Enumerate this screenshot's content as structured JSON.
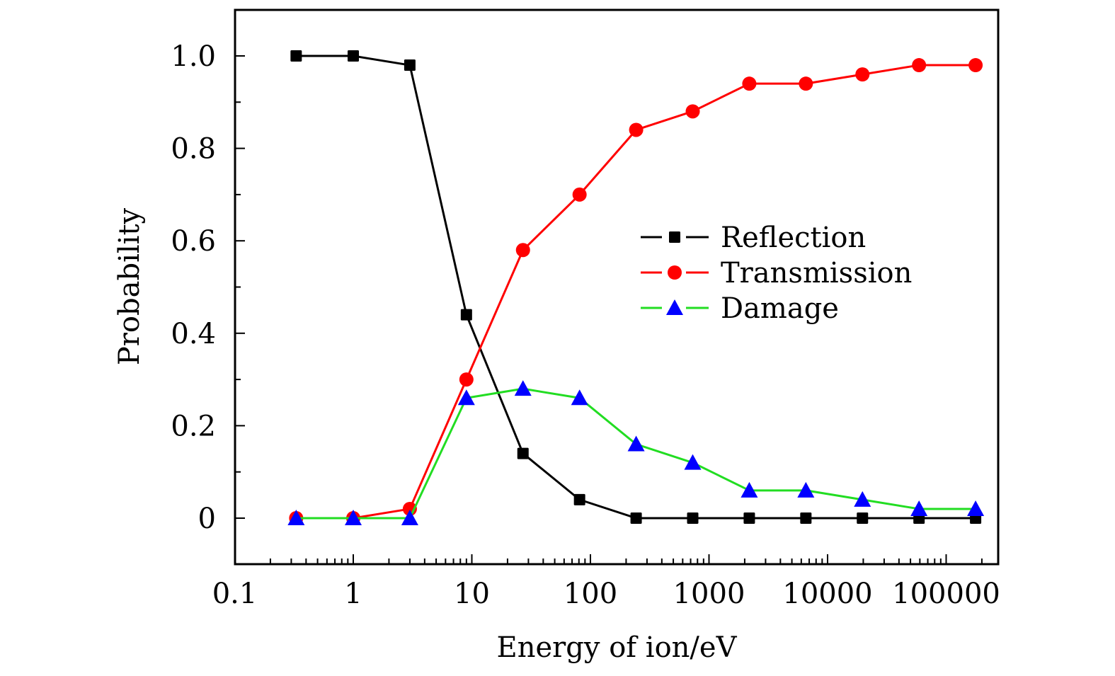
{
  "chart_data": {
    "type": "line",
    "title": "",
    "xlabel": "Energy of ion/eV",
    "ylabel": "Probability",
    "xscale": "log",
    "xlim": [
      0.1,
      300000
    ],
    "ylim": [
      -0.1,
      1.1
    ],
    "x_ticks": [
      0.1,
      1,
      10,
      100,
      1000,
      10000,
      100000
    ],
    "x_tick_labels": [
      "0.1",
      "1",
      "10",
      "100",
      "1000",
      "10000",
      "100000"
    ],
    "y_ticks": [
      0,
      0.2,
      0.4,
      0.6,
      0.8,
      1.0
    ],
    "y_tick_labels": [
      "0",
      "0.2",
      "0.4",
      "0.6",
      "0.8",
      "1.0"
    ],
    "grid": false,
    "legend_position": "center-right",
    "x": [
      0.33,
      1,
      3,
      9,
      27,
      81,
      243,
      729,
      2187,
      6561,
      19683,
      59049,
      177147
    ],
    "series": [
      {
        "name": "Reflection",
        "line_color": "#000000",
        "marker": "square",
        "marker_color": "#000000",
        "values": [
          1.0,
          1.0,
          0.98,
          0.44,
          0.14,
          0.04,
          0,
          0,
          0,
          0,
          0,
          0,
          0
        ]
      },
      {
        "name": "Transmission",
        "line_color": "#ff0000",
        "marker": "circle",
        "marker_color": "#ff0000",
        "values": [
          0,
          0,
          0.02,
          0.3,
          0.58,
          0.7,
          0.84,
          0.88,
          0.94,
          0.94,
          0.96,
          0.98,
          0.98
        ]
      },
      {
        "name": "Damage",
        "line_color": "#22dd22",
        "marker": "triangle",
        "marker_color": "#0000ff",
        "values": [
          0,
          0,
          0,
          0.26,
          0.28,
          0.26,
          0.16,
          0.12,
          0.06,
          0.06,
          0.04,
          0.02,
          0.02
        ]
      }
    ]
  }
}
